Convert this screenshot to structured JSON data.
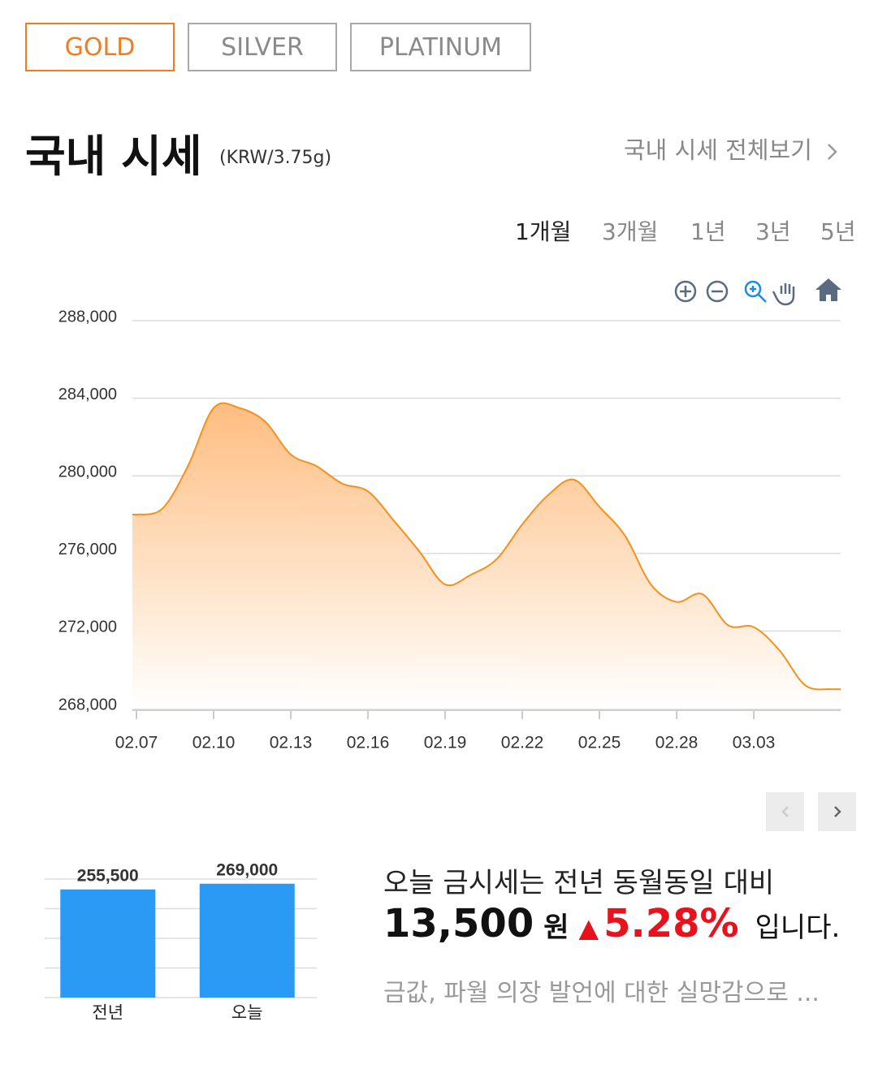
{
  "tabs": [
    {
      "label": "GOLD",
      "active": true
    },
    {
      "label": "SILVER",
      "active": false
    },
    {
      "label": "PLATINUM",
      "active": false
    }
  ],
  "header": {
    "title": "국내 시세",
    "unit": "(KRW/3.75g)",
    "link": "국내 시세 전체보기"
  },
  "periods": [
    {
      "label": "1개월",
      "active": true
    },
    {
      "label": "3개월",
      "active": false
    },
    {
      "label": "1년",
      "active": false
    },
    {
      "label": "3년",
      "active": false
    },
    {
      "label": "5년",
      "active": false
    }
  ],
  "chart_data": [
    {
      "type": "area",
      "color": "#f5901e",
      "fill": "#ffbd80",
      "categories": [
        "02.07",
        null,
        null,
        "02.10",
        null,
        null,
        "02.13",
        null,
        null,
        "02.16",
        null,
        null,
        "02.19",
        null,
        null,
        "02.22",
        null,
        null,
        "02.25",
        null,
        null,
        "02.28",
        null,
        null,
        "03.03",
        null,
        null,
        null
      ],
      "values": [
        278000,
        278300,
        280500,
        283500,
        283500,
        282800,
        281100,
        280500,
        279600,
        279200,
        277700,
        276100,
        274400,
        274900,
        275700,
        277500,
        279000,
        279800,
        278400,
        276900,
        274400,
        273500,
        273900,
        272300,
        272200,
        271000,
        269200,
        269000
      ],
      "ylim": [
        268000,
        288000
      ],
      "yticks": [
        {
          "value": 268000,
          "label": "268,000"
        },
        {
          "value": 272000,
          "label": "272,000"
        },
        {
          "value": 276000,
          "label": "276,000"
        },
        {
          "value": 280000,
          "label": "280,000"
        },
        {
          "value": 284000,
          "label": "284,000"
        },
        {
          "value": 288000,
          "label": "288,000"
        }
      ],
      "grid": true
    },
    {
      "type": "bar",
      "color": "#2a9af4",
      "categories": [
        "전년",
        "오늘"
      ],
      "values": [
        255500,
        269000
      ],
      "value_labels": [
        "255,500",
        "269,000"
      ],
      "ylim": [
        0,
        280000
      ],
      "grid": true
    }
  ],
  "summary": {
    "line1": "오늘 금시세는 전년 동월동일 대비",
    "amount": "13,500",
    "currency": "원",
    "arrow": "▲",
    "percent": "5.28%",
    "suffix": "입니다.",
    "news": "금값, 파월 의장 발언에 대한 실망감으로 ..."
  }
}
